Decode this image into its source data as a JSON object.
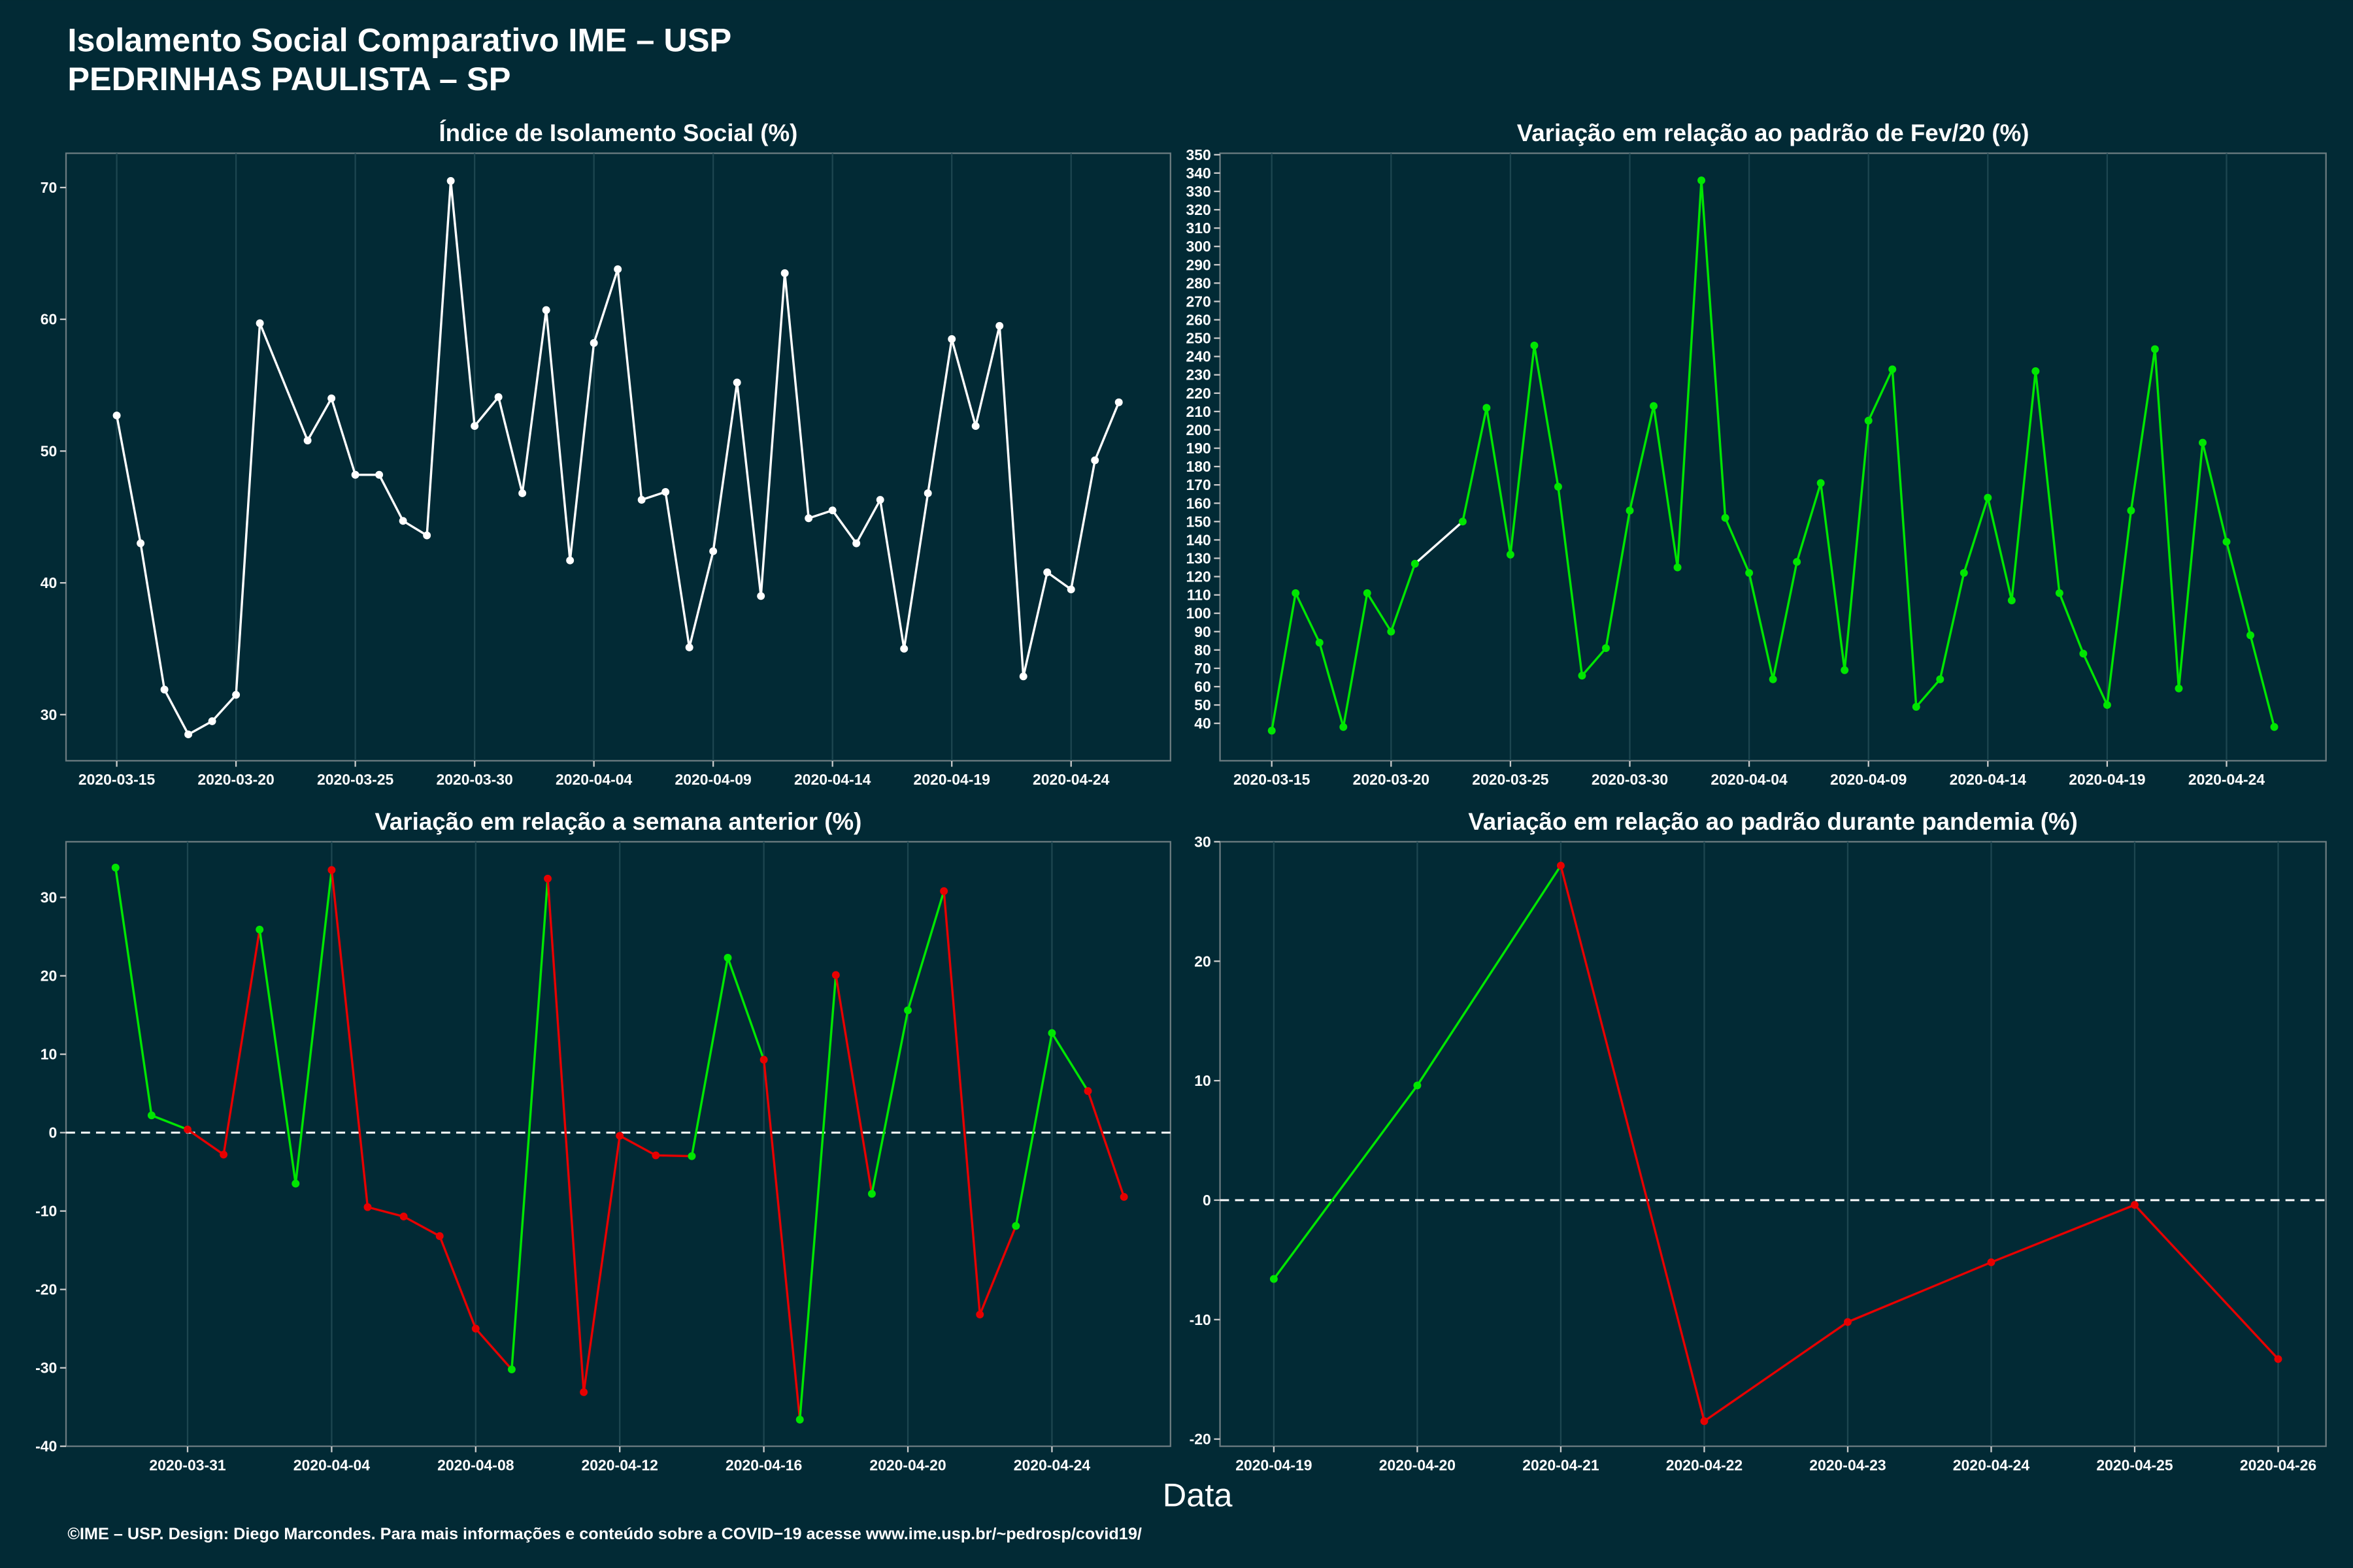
{
  "title": "Isolamento Social Comparativo IME – USP",
  "subtitle": "PEDRINHAS PAULISTA – SP",
  "x_label": "Data",
  "footer": "©IME – USP. Design: Diego Marcondes. Para mais informações e conteúdo sobre a COVID−19 acesse www.ime.usp.br/~pedrosp/covid19/",
  "chart_data": [
    {
      "type": "line",
      "title": "Índice de Isolamento Social (%)",
      "color": "#ffffff",
      "x": [
        "2020-03-15",
        "2020-03-16",
        "2020-03-17",
        "2020-03-18",
        "2020-03-19",
        "2020-03-20",
        "2020-03-21",
        "2020-03-23",
        "2020-03-24",
        "2020-03-25",
        "2020-03-26",
        "2020-03-27",
        "2020-03-28",
        "2020-03-29",
        "2020-03-30",
        "2020-03-31",
        "2020-04-01",
        "2020-04-02",
        "2020-04-03",
        "2020-04-04",
        "2020-04-05",
        "2020-04-06",
        "2020-04-07",
        "2020-04-08",
        "2020-04-09",
        "2020-04-10",
        "2020-04-11",
        "2020-04-12",
        "2020-04-13",
        "2020-04-14",
        "2020-04-15",
        "2020-04-16",
        "2020-04-17",
        "2020-04-18",
        "2020-04-19",
        "2020-04-20",
        "2020-04-21",
        "2020-04-22",
        "2020-04-23",
        "2020-04-24",
        "2020-04-25",
        "2020-04-26"
      ],
      "values": [
        52.7,
        43,
        31.9,
        28.5,
        29.5,
        31.5,
        59.7,
        50.8,
        54,
        48.2,
        48.2,
        44.7,
        43.6,
        70.5,
        51.9,
        54.1,
        46.8,
        60.7,
        41.7,
        58.2,
        63.8,
        46.3,
        46.9,
        35.1,
        42.4,
        55.2,
        39,
        63.5,
        44.9,
        45.5,
        43,
        46.3,
        35,
        46.8,
        58.5,
        51.9,
        59.5,
        32.9,
        40.8,
        39.5,
        49.3,
        53.7
      ],
      "xlim": [
        "2020-03-12T21:00",
        "2020-04-28T04:00"
      ],
      "xticks": [
        "2020-03-15",
        "2020-03-20",
        "2020-03-25",
        "2020-03-30",
        "2020-04-04",
        "2020-04-09",
        "2020-04-14",
        "2020-04-19",
        "2020-04-24"
      ],
      "ylim": [
        26.5,
        72.6
      ],
      "yticks": [
        30,
        40,
        50,
        60,
        70
      ]
    },
    {
      "type": "line",
      "title": "Variação em relação ao padrão de Fev/20 (%)",
      "color": "#00e600",
      "gap_color": "#ffffff",
      "x": [
        "2020-03-15",
        "2020-03-16",
        "2020-03-17",
        "2020-03-18",
        "2020-03-19",
        "2020-03-20",
        "2020-03-21",
        "2020-03-23",
        "2020-03-24",
        "2020-03-25",
        "2020-03-26",
        "2020-03-27",
        "2020-03-28",
        "2020-03-29",
        "2020-03-30",
        "2020-03-31",
        "2020-04-01",
        "2020-04-02",
        "2020-04-03",
        "2020-04-04",
        "2020-04-05",
        "2020-04-06",
        "2020-04-07",
        "2020-04-08",
        "2020-04-09",
        "2020-04-10",
        "2020-04-11",
        "2020-04-12",
        "2020-04-13",
        "2020-04-14",
        "2020-04-15",
        "2020-04-16",
        "2020-04-17",
        "2020-04-18",
        "2020-04-19",
        "2020-04-20",
        "2020-04-21",
        "2020-04-22",
        "2020-04-23",
        "2020-04-24",
        "2020-04-25",
        "2020-04-26"
      ],
      "values": [
        36,
        111,
        84,
        38,
        111,
        90,
        127,
        150,
        212,
        132,
        246,
        169,
        66,
        81,
        156,
        213,
        125,
        336,
        152,
        122,
        64,
        128,
        171,
        69,
        205,
        233,
        49,
        64,
        122,
        163,
        107,
        232,
        111,
        78,
        50,
        156,
        244,
        59,
        193,
        139,
        88,
        38
      ],
      "xlim": [
        "2020-03-12T20:00",
        "2020-04-28T04:00"
      ],
      "xticks": [
        "2020-03-15",
        "2020-03-20",
        "2020-03-25",
        "2020-03-30",
        "2020-04-04",
        "2020-04-09",
        "2020-04-14",
        "2020-04-19",
        "2020-04-24"
      ],
      "ylim": [
        19.6,
        350.8
      ],
      "yticks": [
        40,
        50,
        60,
        70,
        80,
        90,
        100,
        110,
        120,
        130,
        140,
        150,
        160,
        170,
        180,
        190,
        200,
        210,
        220,
        230,
        240,
        250,
        260,
        270,
        280,
        290,
        300,
        310,
        320,
        330,
        340,
        350
      ]
    },
    {
      "type": "line",
      "title": "Variação em relação a semana anterior (%)",
      "hline": 0,
      "x": [
        "2020-03-29",
        "2020-03-30",
        "2020-03-31",
        "2020-04-01",
        "2020-04-02",
        "2020-04-03",
        "2020-04-04",
        "2020-04-05",
        "2020-04-06",
        "2020-04-07",
        "2020-04-08",
        "2020-04-09",
        "2020-04-10",
        "2020-04-11",
        "2020-04-12",
        "2020-04-13",
        "2020-04-14",
        "2020-04-15",
        "2020-04-16",
        "2020-04-17",
        "2020-04-18",
        "2020-04-19",
        "2020-04-20",
        "2020-04-21",
        "2020-04-22",
        "2020-04-23",
        "2020-04-24",
        "2020-04-25",
        "2020-04-26"
      ],
      "values": [
        33.8,
        2.2,
        0.4,
        -2.8,
        25.9,
        -6.5,
        33.5,
        -9.5,
        -10.7,
        -13.2,
        -25,
        -30.2,
        32.4,
        -33.1,
        -0.4,
        -2.9,
        -3,
        22.3,
        9.3,
        -36.6,
        20.1,
        -7.8,
        15.6,
        30.8,
        -23.2,
        -11.9,
        12.7,
        5.3,
        -8.2
      ],
      "colors": [
        "#00e600",
        "#00e600",
        "#e60000",
        "#e60000",
        "#00e600",
        "#00e600",
        "#e60000",
        "#e60000",
        "#e60000",
        "#e60000",
        "#e60000",
        "#00e600",
        "#e60000",
        "#e60000",
        "#e60000",
        "#e60000",
        "#00e600",
        "#00e600",
        "#e60000",
        "#00e600",
        "#e60000",
        "#00e600",
        "#00e600",
        "#e60000",
        "#e60000",
        "#00e600",
        "#00e600",
        "#e60000",
        "#e60000"
      ],
      "xlim": [
        "2020-03-27T15:00",
        "2020-04-27T07:00"
      ],
      "xticks": [
        "2020-03-31",
        "2020-04-04",
        "2020-04-08",
        "2020-04-12",
        "2020-04-16",
        "2020-04-20",
        "2020-04-24"
      ],
      "ylim": [
        -40,
        37.1
      ],
      "yticks": [
        -40,
        -30,
        -20,
        -10,
        0,
        10,
        20,
        30
      ]
    },
    {
      "type": "line",
      "title": "Variação em relação ao padrão durante pandemia (%)",
      "hline": 0,
      "x": [
        "2020-04-19",
        "2020-04-20",
        "2020-04-21",
        "2020-04-22",
        "2020-04-23",
        "2020-04-24",
        "2020-04-25",
        "2020-04-26"
      ],
      "values": [
        -6.6,
        9.6,
        28,
        -18.5,
        -10.2,
        -5.2,
        -0.4,
        -13.3
      ],
      "colors": [
        "#00e600",
        "#00e600",
        "#e60000",
        "#e60000",
        "#e60000",
        "#e60000",
        "#e60000",
        "#e60000"
      ],
      "xlim": [
        "2020-04-18T15:00",
        "2020-04-26T08:00"
      ],
      "xticks": [
        "2020-04-19",
        "2020-04-20",
        "2020-04-21",
        "2020-04-22",
        "2020-04-23",
        "2020-04-24",
        "2020-04-25",
        "2020-04-26"
      ],
      "ylim": [
        -20.6,
        30
      ],
      "yticks": [
        -20,
        -10,
        0,
        10,
        20,
        30
      ]
    }
  ]
}
